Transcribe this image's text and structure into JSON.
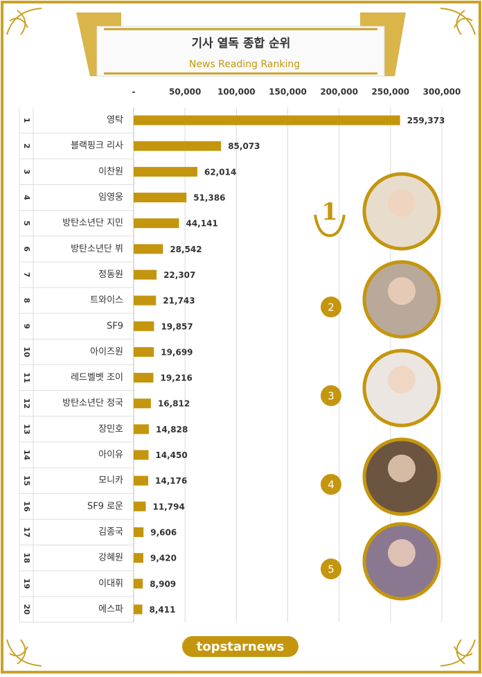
{
  "chart_data": {
    "type": "bar",
    "orientation": "horizontal",
    "title": "기사 열독 종합 순위",
    "subtitle": "News Reading Ranking",
    "ranks": [
      "1",
      "2",
      "3",
      "4",
      "5",
      "6",
      "7",
      "8",
      "9",
      "10",
      "11",
      "12",
      "13",
      "14",
      "15",
      "16",
      "17",
      "18",
      "19",
      "20"
    ],
    "categories": [
      "영탁",
      "블랙핑크 리사",
      "이찬원",
      "임영웅",
      "방탄소년단 지민",
      "방탄소년단 뷔",
      "정동원",
      "트와이스",
      "SF9",
      "아이즈원",
      "레드벨벳 조이",
      "방탄소년단 정국",
      "장민호",
      "아이유",
      "모니카",
      "SF9 로운",
      "김종국",
      "강혜원",
      "이대휘",
      "에스파"
    ],
    "values": [
      259373,
      85073,
      62014,
      51386,
      44141,
      28542,
      22307,
      21743,
      19857,
      19699,
      19216,
      16812,
      14828,
      14450,
      14176,
      11794,
      9606,
      9420,
      8909,
      8411
    ],
    "value_labels": [
      "259,373",
      "85,073",
      "62,014",
      "51,386",
      "44,141",
      "28,542",
      "22,307",
      "21,743",
      "19,857",
      "19,699",
      "19,216",
      "16,812",
      "14,828",
      "14,450",
      "14,176",
      "11,794",
      "9,606",
      "9,420",
      "8,909",
      "8,411"
    ],
    "color": "#c4960e",
    "xlim": [
      0,
      300000
    ],
    "xticks": [
      {
        "value": 0,
        "label": "-"
      },
      {
        "value": 50000,
        "label": "50,000"
      },
      {
        "value": 100000,
        "label": "100,000"
      },
      {
        "value": 150000,
        "label": "150,000"
      },
      {
        "value": 200000,
        "label": "200,000"
      },
      {
        "value": 250000,
        "label": "250,000"
      },
      {
        "value": 300000,
        "label": "300,000"
      }
    ],
    "grid": true,
    "photo_ranks": [
      "1",
      "2",
      "3",
      "4",
      "5"
    ],
    "logo": "topstarnews"
  }
}
